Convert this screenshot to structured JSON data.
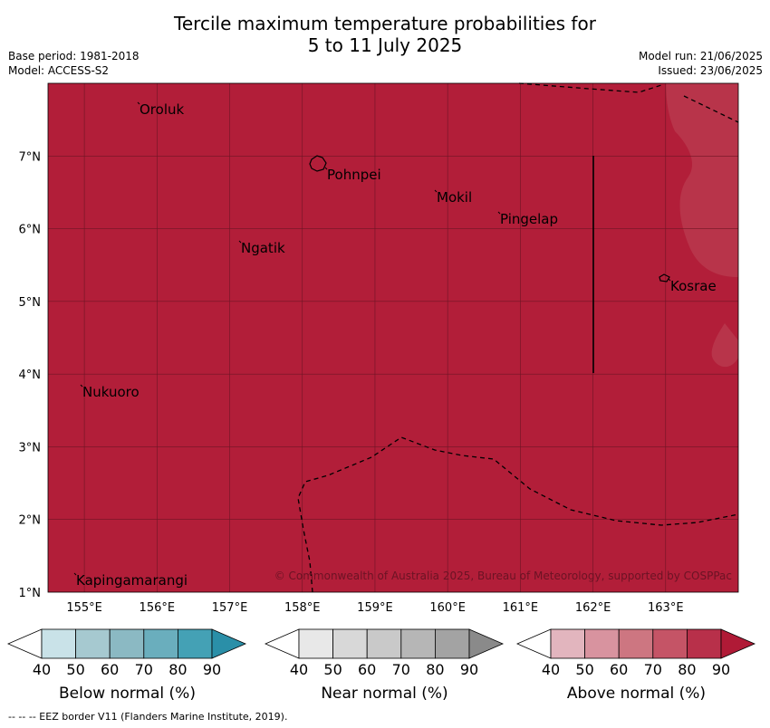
{
  "title_line1": "Tercile maximum temperature probabilities for",
  "title_line2": "5 to 11 July 2025",
  "header": {
    "base_period": "Base period: 1981-2018",
    "model": "Model: ACCESS-S2",
    "model_run": "Model run: 21/06/2025",
    "issued": "Issued: 23/06/2025"
  },
  "map": {
    "lon_range": [
      154.5,
      164
    ],
    "lat_range": [
      1,
      8
    ],
    "lon_ticks": [
      "155°E",
      "156°E",
      "157°E",
      "158°E",
      "159°E",
      "160°E",
      "161°E",
      "162°E",
      "163°E"
    ],
    "lat_ticks": [
      "1°N",
      "2°N",
      "3°N",
      "4°N",
      "5°N",
      "6°N",
      "7°N"
    ],
    "background_color": "#b21e39",
    "lighter_color": "#b8344a",
    "places": [
      {
        "name": "Oroluk",
        "lon": 155.8,
        "lat": 7.6
      },
      {
        "name": "Pohnpei",
        "lon": 158.2,
        "lat": 6.85
      },
      {
        "name": "Mokil",
        "lon": 159.8,
        "lat": 6.7
      },
      {
        "name": "Pingelap",
        "lon": 160.7,
        "lat": 6.2
      },
      {
        "name": "Ngatik",
        "lon": 157.1,
        "lat": 5.8
      },
      {
        "name": "Kosrae",
        "lon": 163.0,
        "lat": 5.3
      },
      {
        "name": "Nukuoro",
        "lon": 154.8,
        "lat": 3.85
      },
      {
        "name": "Kapingamarangi",
        "lon": 154.8,
        "lat": 1.15
      }
    ],
    "copyright": "© Commonwealth of Australia 2025, Bureau of Meteorology, supported by COSPPac"
  },
  "colorbars": [
    {
      "label": "Below normal (%)",
      "ticks": [
        "40",
        "50",
        "60",
        "70",
        "80",
        "90"
      ],
      "colors": [
        "#ffffff",
        "#c9e2e8",
        "#a6c9d0",
        "#8bb9c3",
        "#6aaebd",
        "#44a1b5",
        "#2a8fa8"
      ]
    },
    {
      "label": "Near normal (%)",
      "ticks": [
        "40",
        "50",
        "60",
        "70",
        "80",
        "90"
      ],
      "colors": [
        "#ffffff",
        "#e8e8e8",
        "#d8d8d8",
        "#c9c9c9",
        "#b6b6b6",
        "#a3a3a3",
        "#8a8a8a"
      ]
    },
    {
      "label": "Above normal (%)",
      "ticks": [
        "40",
        "50",
        "60",
        "70",
        "80",
        "90"
      ],
      "colors": [
        "#ffffff",
        "#e2b5be",
        "#d8939f",
        "#cd7681",
        "#c55466",
        "#b8304a",
        "#b01a36"
      ]
    }
  ],
  "footer": "--  --  -- EEZ border V11 (Flanders Marine Institute, 2019)."
}
